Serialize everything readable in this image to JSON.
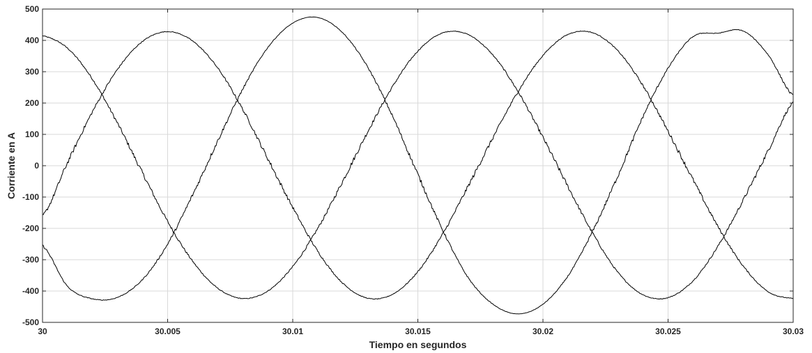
{
  "chart_data": {
    "type": "line",
    "title": "",
    "xlabel": "Tiempo en segundos",
    "ylabel": "Corriente en A",
    "xlim": [
      30,
      30.03
    ],
    "ylim": [
      -500,
      500
    ],
    "x_ticks": [
      30,
      30.005,
      30.01,
      30.015,
      30.02,
      30.025,
      30.03
    ],
    "x_tick_labels": [
      "30",
      "30.005",
      "30.01",
      "30.015",
      "30.02",
      "30.025",
      "30.03"
    ],
    "y_ticks": [
      500,
      400,
      300,
      200,
      100,
      0,
      -100,
      -200,
      -300,
      -400,
      -500
    ],
    "y_tick_labels": [
      "500",
      "400",
      "300",
      "200",
      "100",
      "0",
      "-100",
      "-200",
      "-300",
      "-400",
      "-500"
    ],
    "grid": true,
    "legend": "none",
    "line_color": "#000000",
    "series": [
      {
        "x": [
          30,
          30.001,
          30.002,
          30.003,
          30.004,
          30.005,
          30.006,
          30.007,
          30.008,
          30.009,
          30.01,
          30.011,
          30.012,
          30.013,
          30.014,
          30.015,
          30.016,
          30.017,
          30.018,
          30.019,
          30.02,
          30.021,
          30.022,
          30.023,
          30.024,
          30.025,
          30.026,
          30.027,
          30.028,
          30.029,
          30.03
        ],
        "values": [
          415,
          375,
          276,
          135,
          -24,
          -178,
          -305,
          -391,
          -424,
          -400,
          -322,
          -200,
          -49,
          109,
          254,
          366,
          424,
          419,
          353,
          237,
          90,
          -67,
          -217,
          -341,
          -412,
          -421,
          -367,
          -256,
          -110,
          48,
          201
        ]
      },
      {
        "x": [
          30,
          30.001,
          30.002,
          30.003,
          30.004,
          30.005,
          30.006,
          30.007,
          30.008,
          30.009,
          30.01,
          30.011,
          30.012,
          30.013,
          30.014,
          30.015,
          30.016,
          30.017,
          30.018,
          30.019,
          30.02,
          30.021,
          30.022,
          30.023,
          30.024,
          30.025,
          30.026,
          30.027,
          30.028,
          30.029,
          30.03
        ],
        "values": [
          -160,
          10,
          173,
          308,
          397,
          428,
          398,
          312,
          180,
          23,
          -133,
          -273,
          -375,
          -423,
          -410,
          -338,
          -217,
          -67,
          89,
          236,
          352,
          419,
          424,
          366,
          255,
          110,
          -45,
          -195,
          -320,
          -402,
          -424
        ]
      },
      {
        "x": [
          30,
          30.001,
          30.002,
          30.003,
          30.004,
          30.005,
          30.006,
          30.007,
          30.008,
          30.009,
          30.01,
          30.011,
          30.012,
          30.013,
          30.014,
          30.015,
          30.016,
          30.017,
          30.018,
          30.019,
          30.02,
          30.021,
          30.022,
          30.023,
          30.024,
          30.025,
          30.026,
          30.027,
          30.028,
          30.029,
          30.03
        ],
        "values": [
          -255,
          -385,
          -425,
          -420,
          -363,
          -250,
          -93,
          79,
          244,
          377,
          455,
          473,
          424,
          314,
          156,
          -28,
          -207,
          -356,
          -442,
          -473,
          -442,
          -352,
          -207,
          -31,
          157,
          311,
          412,
          423,
          430,
          354,
          223
        ]
      }
    ]
  }
}
